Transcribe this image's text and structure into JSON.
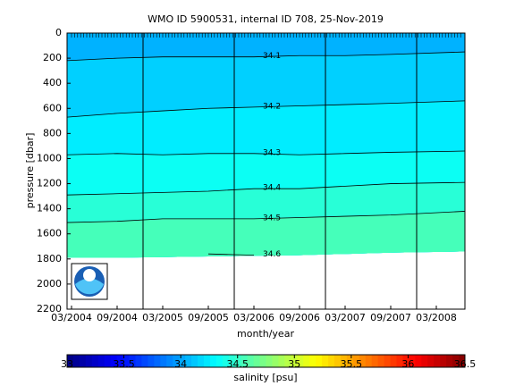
{
  "chart_data": {
    "type": "contour",
    "title": "WMO ID 5900531, internal ID 708, 25-Nov-2019",
    "x_label": "month/year",
    "y_label": "pressure [dbar]",
    "x": [
      "03/2004",
      "09/2004",
      "03/2005",
      "09/2005",
      "03/2006",
      "09/2006",
      "03/2007",
      "09/2007",
      "03/2008"
    ],
    "ylim": [
      0,
      2200
    ],
    "yticks": [
      0,
      200,
      400,
      600,
      800,
      1000,
      1200,
      1400,
      1600,
      1800,
      2000,
      2200
    ],
    "y_reversed": true,
    "contours": [
      {
        "level": 34.1,
        "values": [
          220,
          200,
          190,
          190,
          190,
          180,
          180,
          170,
          150
        ]
      },
      {
        "level": 34.2,
        "values": [
          670,
          640,
          620,
          600,
          590,
          580,
          570,
          560,
          540
        ]
      },
      {
        "level": 34.3,
        "values": [
          970,
          960,
          970,
          960,
          960,
          970,
          960,
          950,
          940
        ]
      },
      {
        "level": 34.4,
        "values": [
          1290,
          1280,
          1270,
          1260,
          1240,
          1240,
          1220,
          1200,
          1190
        ]
      },
      {
        "level": 34.5,
        "values": [
          1510,
          1500,
          1480,
          1480,
          1480,
          1470,
          1460,
          1450,
          1420
        ]
      },
      {
        "level": 34.6,
        "values": [
          null,
          null,
          null,
          1760,
          1770,
          null,
          null,
          null,
          null
        ]
      }
    ],
    "data_bottom": [
      1790,
      1790,
      1785,
      1780,
      1775,
      1770,
      1760,
      1750,
      1740
    ],
    "colorbar": {
      "label": "salinity [psu]",
      "lim": [
        33,
        36.5
      ],
      "ticks": [
        33,
        33.5,
        34,
        34.5,
        35,
        35.5,
        36,
        36.5
      ],
      "colormap": "jet"
    }
  }
}
